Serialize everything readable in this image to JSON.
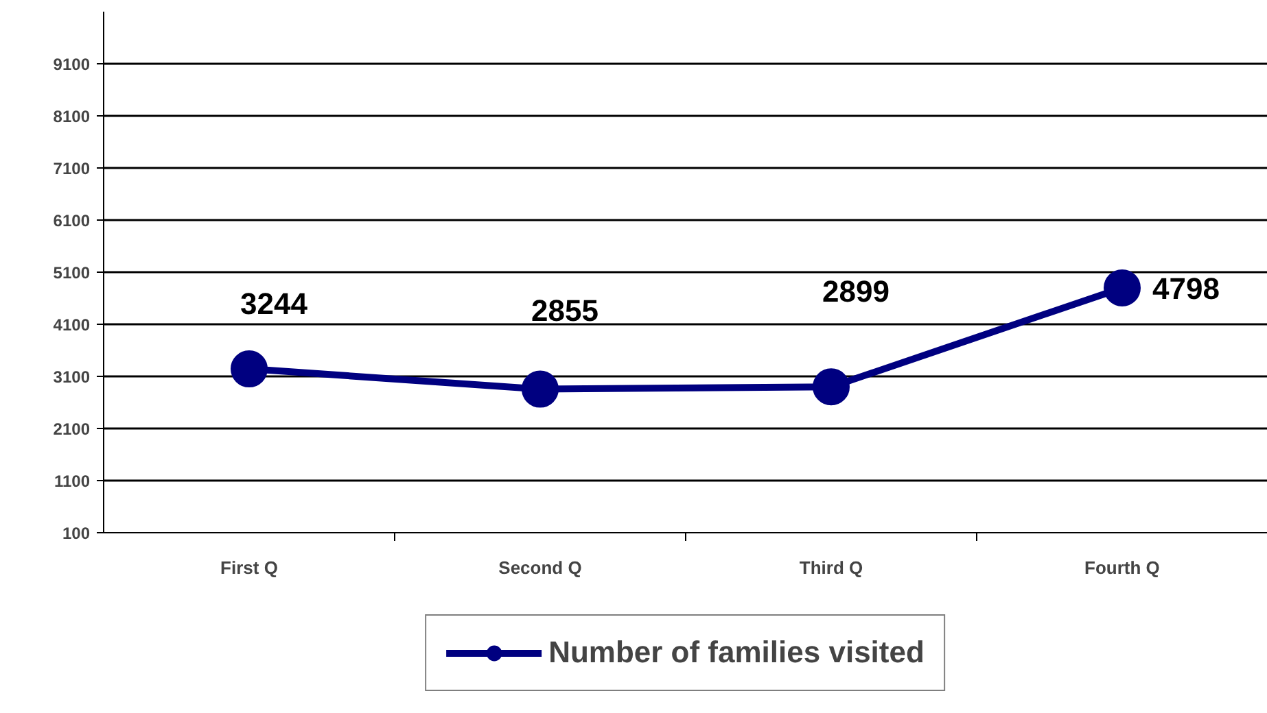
{
  "chart_data": {
    "type": "line",
    "categories": [
      "First Q",
      "Second Q",
      "Third Q",
      "Fourth Q"
    ],
    "series": [
      {
        "name": "Number of families visited",
        "color": "#000080",
        "values": [
          3244,
          2855,
          2899,
          4798
        ]
      }
    ],
    "ylim": [
      100,
      10100
    ],
    "yticks": [
      100,
      1100,
      2100,
      3100,
      4100,
      5100,
      6100,
      7100,
      8100,
      9100
    ],
    "grid": "y",
    "legend": "bottom",
    "marker": "circle",
    "line_style": "solid",
    "data_labels": true
  }
}
